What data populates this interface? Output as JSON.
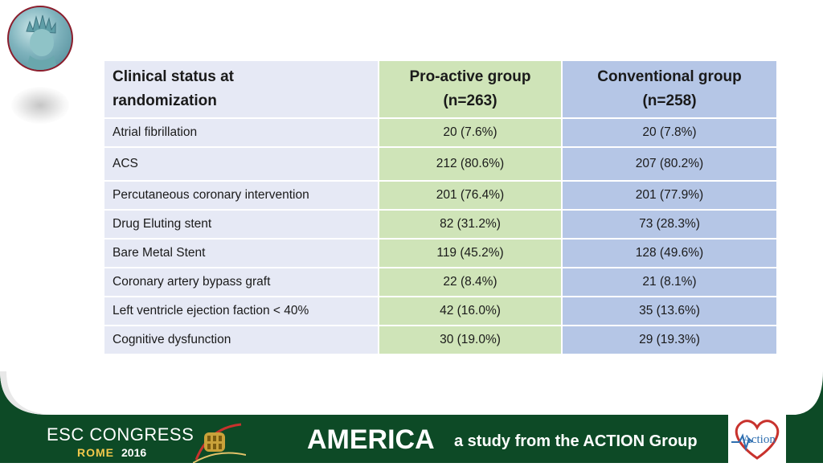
{
  "table": {
    "headers": [
      "Clinical status at\nrandomization",
      "Pro-active group\n(n=263)",
      "Conventional group\n(n=258)"
    ],
    "header_lines": [
      [
        "Clinical status at",
        "randomization"
      ],
      [
        "Pro-active group",
        "(n=263)"
      ],
      [
        "Conventional group",
        "(n=258)"
      ]
    ],
    "rows": [
      [
        "Atrial fibrillation",
        "20 (7.6%)",
        "20 (7.8%)"
      ],
      [
        "ACS",
        "212 (80.6%)",
        "207 (80.2%)"
      ],
      [
        "Percutaneous coronary intervention",
        "201 (76.4%)",
        "201 (77.9%)"
      ],
      [
        "Drug Eluting stent",
        "82 (31.2%)",
        "73 (28.3%)"
      ],
      [
        "Bare Metal Stent",
        "119 (45.2%)",
        "128 (49.6%)"
      ],
      [
        "Coronary artery bypass graft",
        "22 (8.4%)",
        "21 (8.1%)"
      ],
      [
        "Left ventricle ejection faction < 40%",
        "42 (16.0%)",
        "35 (13.6%)"
      ],
      [
        "Cognitive dysfunction",
        "30 (19.0%)",
        "29 (19.3%)"
      ]
    ]
  },
  "footer": {
    "congress": "ESC CONGRESS",
    "city": "ROME",
    "year": "2016",
    "study_name": "AMERICA",
    "tagline": "a study from the ACTION Group",
    "logo_text": "Action"
  },
  "colors": {
    "footer_green": "#0d4a26",
    "col1": "#e6e9f5",
    "col2": "#cfe4b8",
    "col3": "#b5c6e6",
    "heart": "#c8322d"
  }
}
